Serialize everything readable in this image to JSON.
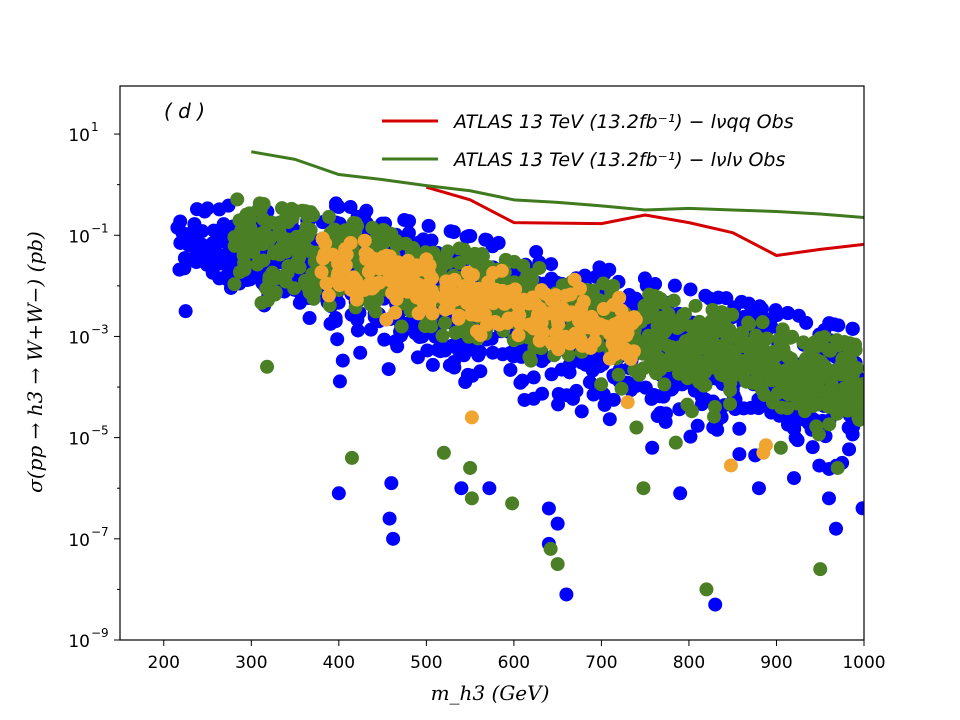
{
  "chart_data": {
    "type": "scatter",
    "panel_label": "( d )",
    "xlabel": "m_h3 (GeV)",
    "ylabel": "σ(pp → h3 → W+W−) (pb)",
    "xlim": [
      150,
      1000
    ],
    "ylim_log10": [
      -9,
      1.95
    ],
    "y_scale": "log",
    "x_ticks": [
      200,
      300,
      400,
      500,
      600,
      700,
      800,
      900,
      1000
    ],
    "x_tick_labels": [
      "200",
      "300",
      "400",
      "500",
      "600",
      "700",
      "800",
      "900",
      "1000"
    ],
    "y_ticks_exp": [
      1,
      -1,
      -3,
      -5,
      -7,
      -9
    ],
    "y_tick_labels": [
      {
        "base": "10",
        "exp": "1"
      },
      {
        "base": "10",
        "exp": "−1"
      },
      {
        "base": "10",
        "exp": "−3"
      },
      {
        "base": "10",
        "exp": "−5"
      },
      {
        "base": "10",
        "exp": "−7"
      },
      {
        "base": "10",
        "exp": "−9"
      }
    ],
    "legend_position": "top-right",
    "lines": [
      {
        "name": "ATLAS 13 TeV (13.2fb⁻¹) − lνqq Obs",
        "color": "#d40000",
        "x": [
          500,
          550,
          600,
          700,
          750,
          800,
          850,
          900,
          950,
          1000
        ],
        "y_log10": [
          -0.05,
          -0.3,
          -0.75,
          -0.77,
          -0.6,
          -0.75,
          -0.95,
          -1.4,
          -1.28,
          -1.18
        ]
      },
      {
        "name": "ATLAS 13 TeV (13.2fb⁻¹) − lνlν Obs",
        "color": "#3f7a1f",
        "x": [
          300,
          350,
          400,
          450,
          500,
          550,
          600,
          650,
          700,
          750,
          800,
          850,
          900,
          950,
          1000
        ],
        "y_log10": [
          0.65,
          0.5,
          0.2,
          0.1,
          -0.02,
          -0.12,
          -0.3,
          -0.35,
          -0.42,
          -0.5,
          -0.47,
          -0.5,
          -0.53,
          -0.58,
          -0.65
        ]
      }
    ],
    "scatter_series": [
      {
        "name": "blue",
        "color": "#0000ff",
        "count": 1300
      },
      {
        "name": "green",
        "color": "#4a7f25",
        "count": 900
      },
      {
        "name": "orange",
        "color": "#f0a530",
        "count": 260
      }
    ],
    "outliers": {
      "blue": [
        [
          225,
          -2.5
        ],
        [
          400,
          -6.1
        ],
        [
          460,
          -5.9
        ],
        [
          458,
          -6.6
        ],
        [
          462,
          -7.0
        ],
        [
          540,
          -6.0
        ],
        [
          572,
          -6.0
        ],
        [
          640,
          -6.4
        ],
        [
          660,
          -8.1
        ],
        [
          758,
          -5.2
        ],
        [
          790,
          -6.1
        ],
        [
          830,
          -8.3
        ],
        [
          880,
          -6.0
        ],
        [
          960,
          -6.2
        ],
        [
          968,
          -6.8
        ],
        [
          975,
          -5.5
        ],
        [
          920,
          -5.8
        ],
        [
          640,
          -7.1
        ],
        [
          650,
          -6.7
        ]
      ],
      "green": [
        [
          318,
          -3.6
        ],
        [
          415,
          -5.4
        ],
        [
          520,
          -5.3
        ],
        [
          550,
          -5.6
        ],
        [
          552,
          -6.2
        ],
        [
          598,
          -6.3
        ],
        [
          642,
          -7.2
        ],
        [
          650,
          -7.5
        ],
        [
          748,
          -6.0
        ],
        [
          820,
          -8.0
        ],
        [
          950,
          -7.6
        ],
        [
          970,
          -5.6
        ],
        [
          740,
          -4.8
        ],
        [
          785,
          -5.1
        ],
        [
          905,
          -5.2
        ]
      ],
      "orange": [
        [
          552,
          -4.6
        ],
        [
          848,
          -5.55
        ],
        [
          885,
          -5.3
        ],
        [
          888,
          -5.15
        ],
        [
          730,
          -4.3
        ]
      ]
    }
  }
}
